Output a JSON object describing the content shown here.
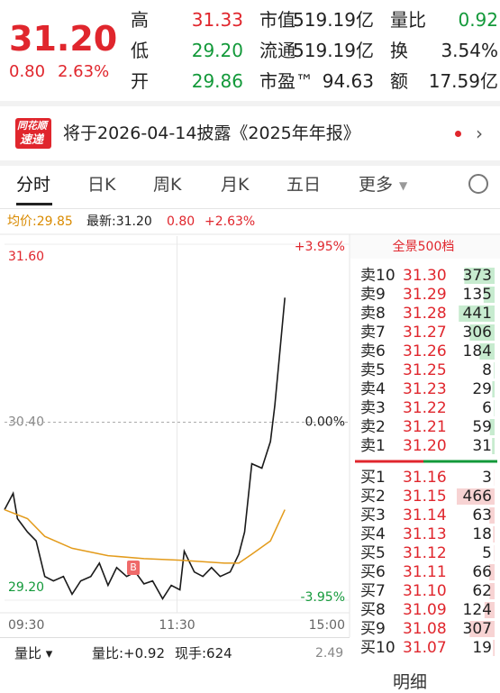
{
  "quote": {
    "price": "31.20",
    "change": "0.80",
    "change_pct": "2.63%",
    "stats": [
      [
        {
          "label": "高",
          "value": "31.33"
        },
        {
          "label": "市值",
          "value": "519.19亿"
        },
        {
          "label": "量比",
          "value": "0.92"
        }
      ],
      [
        {
          "label": "低",
          "value": "29.20"
        },
        {
          "label": "流通",
          "value": "519.19亿"
        },
        {
          "label": "换",
          "value": "3.54%"
        }
      ],
      [
        {
          "label": "开",
          "value": "29.86"
        },
        {
          "label": "市盈™",
          "value": "94.63"
        },
        {
          "label": "额",
          "value": "17.59亿"
        }
      ]
    ]
  },
  "banner": {
    "logo_top": "同花顺",
    "logo_bottom": "速递",
    "text": "将于2026-04-14披露《2025年年报》"
  },
  "tabs": [
    "分时",
    "日K",
    "周K",
    "月K",
    "五日",
    "更多"
  ],
  "info": {
    "avg": "均价:29.85",
    "latest": "最新:31.20",
    "change": "0.80",
    "change_pct": "+2.63%"
  },
  "chart_data": {
    "type": "line",
    "xlim": [
      0,
      240
    ],
    "xticks": [
      {
        "value": 0,
        "label": "09:30"
      },
      {
        "value": 120,
        "label": "11:30"
      },
      {
        "value": 240,
        "label": "15:00"
      }
    ],
    "ylim": [
      29.2,
      31.6
    ],
    "yticks": [
      {
        "value": 29.2,
        "label": "29.20"
      },
      {
        "value": 30.4,
        "label": "30.40"
      },
      {
        "value": 31.6,
        "label": "31.60"
      }
    ],
    "y2lim": [
      -3.95,
      3.95
    ],
    "y2ticks": [
      {
        "value": -3.95,
        "label": "-3.95%"
      },
      {
        "value": 0,
        "label": "0.00%"
      },
      {
        "value": 3.95,
        "label": "+3.95%"
      }
    ],
    "series": [
      {
        "color": "#1a1a1a",
        "x": [
          0,
          6,
          9,
          16,
          22,
          28,
          34,
          41,
          47,
          53,
          60,
          66,
          72,
          78,
          85,
          91,
          97,
          103,
          110,
          116,
          122,
          125,
          132,
          138,
          144,
          150,
          157,
          163,
          167,
          172,
          179,
          185,
          188,
          191,
          195
        ],
        "values": [
          29.81,
          29.92,
          29.75,
          29.66,
          29.6,
          29.36,
          29.33,
          29.36,
          29.24,
          29.33,
          29.36,
          29.45,
          29.3,
          29.42,
          29.36,
          29.39,
          29.31,
          29.33,
          29.21,
          29.3,
          29.27,
          29.53,
          29.39,
          29.36,
          29.42,
          29.36,
          29.39,
          29.51,
          29.66,
          30.12,
          30.09,
          30.27,
          30.51,
          30.82,
          31.24
        ]
      },
      {
        "color": "#e39b1b",
        "x": [
          0,
          16,
          28,
          47,
          72,
          97,
          122,
          153,
          163,
          172,
          185,
          195
        ],
        "values": [
          29.81,
          29.75,
          29.63,
          29.55,
          29.5,
          29.48,
          29.47,
          29.45,
          29.45,
          29.51,
          29.6,
          29.81
        ]
      }
    ]
  },
  "orderbook": {
    "title": "全景500档",
    "asks": [
      {
        "label": "卖10",
        "price": "31.30",
        "qty": 373
      },
      {
        "label": "卖9",
        "price": "31.29",
        "qty": 135
      },
      {
        "label": "卖8",
        "price": "31.28",
        "qty": 441
      },
      {
        "label": "卖7",
        "price": "31.27",
        "qty": 306
      },
      {
        "label": "卖6",
        "price": "31.26",
        "qty": 184
      },
      {
        "label": "卖5",
        "price": "31.25",
        "qty": 8
      },
      {
        "label": "卖4",
        "price": "31.23",
        "qty": 29
      },
      {
        "label": "卖3",
        "price": "31.22",
        "qty": 6
      },
      {
        "label": "卖2",
        "price": "31.21",
        "qty": 59
      },
      {
        "label": "卖1",
        "price": "31.20",
        "qty": 31
      }
    ],
    "bids": [
      {
        "label": "买1",
        "price": "31.16",
        "qty": 3
      },
      {
        "label": "买2",
        "price": "31.15",
        "qty": 466
      },
      {
        "label": "买3",
        "price": "31.14",
        "qty": 63
      },
      {
        "label": "买4",
        "price": "31.13",
        "qty": 18
      },
      {
        "label": "买5",
        "price": "31.12",
        "qty": 5
      },
      {
        "label": "买6",
        "price": "31.11",
        "qty": 66
      },
      {
        "label": "买7",
        "price": "31.10",
        "qty": 62
      },
      {
        "label": "买8",
        "price": "31.09",
        "qty": 124
      },
      {
        "label": "买9",
        "price": "31.08",
        "qty": 307
      },
      {
        "label": "买10",
        "price": "31.07",
        "qty": 19
      }
    ]
  },
  "volume": {
    "selector": "量比",
    "ratio": "量比:+0.92",
    "hand": "现手:624",
    "max": "2.49"
  },
  "footer": {
    "detail": "明细"
  }
}
